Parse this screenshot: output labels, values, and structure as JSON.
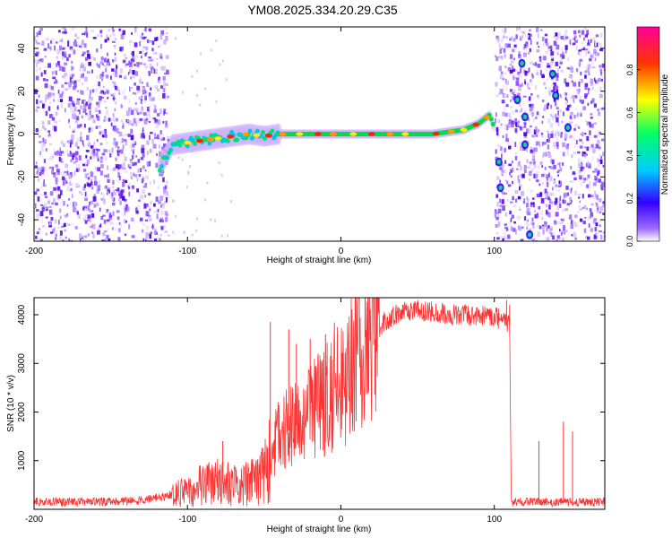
{
  "title": "YM08.2025.334.20.29.C35",
  "chart_data": [
    {
      "type": "heatmap",
      "name": "spectrogram",
      "xlabel": "Height of straight line (km)",
      "ylabel": "Frequency (Hz)",
      "xlim": [
        -200,
        172
      ],
      "ylim": [
        -50,
        50
      ],
      "xticks": [
        -200,
        -100,
        0,
        100
      ],
      "yticks": [
        -40,
        -20,
        0,
        20,
        40
      ],
      "colorbar": {
        "label": "Normalized spectral amplitude",
        "range": [
          0,
          1
        ],
        "ticks": [
          "0.0",
          "0.2",
          "0.4",
          "0.6",
          "0.8"
        ]
      },
      "noise_regions_km": [
        [
          -200,
          -113
        ],
        [
          100,
          172
        ]
      ],
      "ridge": {
        "x": [
          -118,
          -110,
          -100,
          -90,
          -80,
          -70,
          -60,
          -50,
          -40,
          -30,
          -20,
          -10,
          0,
          10,
          20,
          30,
          40,
          50,
          60,
          70,
          80,
          90,
          97,
          100
        ],
        "y": [
          -15,
          -5,
          -4,
          -3,
          -2,
          -1,
          0,
          -1,
          0,
          0,
          0,
          0,
          0,
          0,
          0,
          0,
          0,
          0,
          0,
          1,
          2,
          5,
          9,
          3
        ]
      },
      "spots": [
        {
          "x": 103,
          "y": -13
        },
        {
          "x": 104,
          "y": -25
        },
        {
          "x": 115,
          "y": 16
        },
        {
          "x": 118,
          "y": 33
        },
        {
          "x": 120,
          "y": 8
        },
        {
          "x": 120,
          "y": -5
        },
        {
          "x": 123,
          "y": -47
        },
        {
          "x": 138,
          "y": 28
        },
        {
          "x": 140,
          "y": 18
        },
        {
          "x": 148,
          "y": 3
        }
      ]
    },
    {
      "type": "line",
      "name": "snr",
      "xlabel": "Height of straight line (km)",
      "ylabel": "SNR (10 * v/v)",
      "xlim": [
        -200,
        172
      ],
      "ylim": [
        0,
        4350
      ],
      "xticks": [
        -200,
        -100,
        0,
        100
      ],
      "yticks": [
        1000,
        2000,
        3000,
        4000
      ],
      "series": [
        {
          "name": "SNR",
          "color": "#ff3333",
          "x": [
            -200,
            -150,
            -130,
            -110,
            -100,
            -90,
            -80,
            -70,
            -60,
            -50,
            -45,
            -40,
            -30,
            -20,
            -10,
            0,
            10,
            20,
            30,
            40,
            50,
            60,
            70,
            80,
            90,
            100,
            105,
            108,
            110,
            111,
            115,
            125,
            130,
            140,
            145,
            150,
            160,
            172
          ],
          "y": [
            150,
            160,
            180,
            300,
            400,
            500,
            550,
            500,
            550,
            700,
            1200,
            1500,
            1700,
            2000,
            2300,
            2700,
            3100,
            3600,
            3900,
            4050,
            4100,
            4050,
            4000,
            4000,
            3980,
            3950,
            3900,
            3850,
            3800,
            150,
            150,
            150,
            150,
            150,
            150,
            150,
            150,
            150
          ]
        }
      ],
      "spikes": [
        {
          "x": -77,
          "y": 1400
        },
        {
          "x": -46,
          "y": 3850
        },
        {
          "x": -34,
          "y": 3700
        },
        {
          "x": -29,
          "y": 3400
        },
        {
          "x": -20,
          "y": 3500
        },
        {
          "x": -10,
          "y": 3600
        },
        {
          "x": 108,
          "y": 4300
        },
        {
          "x": 110,
          "y": 4200
        },
        {
          "x": 129,
          "y": 1400
        },
        {
          "x": 145,
          "y": 1800
        },
        {
          "x": 151,
          "y": 1600
        }
      ]
    }
  ]
}
